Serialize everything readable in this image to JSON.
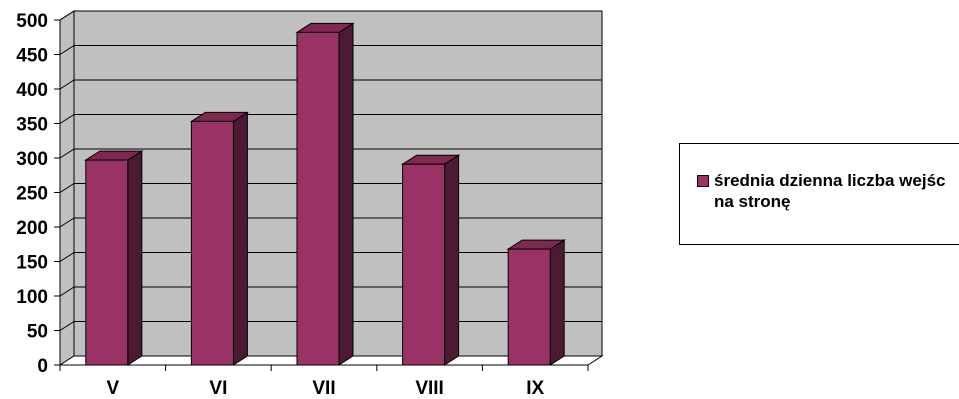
{
  "chart_data": {
    "type": "bar",
    "categories": [
      "V",
      "VI",
      "VII",
      "VIII",
      "IX"
    ],
    "series": [
      {
        "name": "średnia dzienna liczba wejśc na stronę",
        "values": [
          297,
          353,
          482,
          291,
          168
        ]
      }
    ],
    "ylim": [
      0,
      500
    ],
    "yticks": [
      "0",
      "50",
      "100",
      "150",
      "200",
      "250",
      "300",
      "350",
      "400",
      "450",
      "500"
    ],
    "grid": true,
    "legend_position": "right",
    "colors": {
      "bar_front": "#993366",
      "bar_side": "#4d1a33",
      "bar_top": "#80294f",
      "plot_back": "#c0c0c0",
      "floor": "#ffffff"
    }
  }
}
